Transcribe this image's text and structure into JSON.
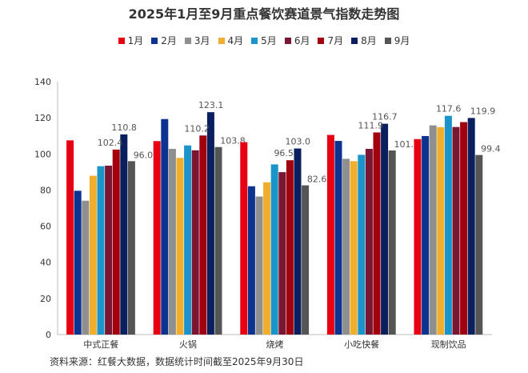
{
  "chart_data": {
    "type": "bar",
    "title": "2025年1月至9月重点餐饮赛道景气指数走势图",
    "categories": [
      "中式正餐",
      "火锅",
      "烧烤",
      "小吃快餐",
      "现制饮品"
    ],
    "series": [
      {
        "name": "1月",
        "color": "#e60012",
        "values": [
          107.5,
          107.1,
          106.5,
          110.5,
          108.2
        ]
      },
      {
        "name": "2月",
        "color": "#0d3390",
        "values": [
          79.6,
          119.3,
          82.1,
          107.2,
          109.9
        ]
      },
      {
        "name": "3月",
        "color": "#8f8f8f",
        "values": [
          74.1,
          102.8,
          76.4,
          97.3,
          115.8
        ]
      },
      {
        "name": "4月",
        "color": "#f0ae2c",
        "values": [
          87.9,
          97.8,
          84.3,
          96.0,
          114.8
        ]
      },
      {
        "name": "5月",
        "color": "#1b94c9",
        "values": [
          93.2,
          104.7,
          94.2,
          99.5,
          121.1
        ]
      },
      {
        "name": "6月",
        "color": "#7a1631",
        "values": [
          93.5,
          102.0,
          89.9,
          102.8,
          114.9
        ]
      },
      {
        "name": "7月",
        "color": "#a3000f",
        "values": [
          102.4,
          110.2,
          96.5,
          111.9,
          117.6
        ]
      },
      {
        "name": "8月",
        "color": "#0a1f5e",
        "values": [
          110.8,
          123.1,
          103.0,
          116.7,
          119.9
        ]
      },
      {
        "name": "9月",
        "color": "#555555",
        "values": [
          96.0,
          103.8,
          82.6,
          101.9,
          99.4
        ]
      }
    ],
    "data_labels": [
      {
        "series": "7月",
        "values": [
          "102.4",
          "110.2",
          "96.5",
          "111.9",
          "117.6"
        ]
      },
      {
        "series": "8月",
        "values": [
          "110.8",
          "123.1",
          "103.0",
          "116.7",
          "119.9"
        ]
      },
      {
        "series": "9月",
        "values": [
          "96.0",
          "103.8",
          "82.6",
          "101.9",
          "99.4"
        ]
      }
    ],
    "ylim": [
      0,
      140
    ],
    "yticks": [
      0,
      20,
      40,
      60,
      80,
      100,
      120,
      140
    ],
    "xlabel": "",
    "ylabel": "",
    "legend": "top",
    "grid": false
  },
  "source": "资料来源：红餐大数据，数据统计时间截至2025年9月30日"
}
